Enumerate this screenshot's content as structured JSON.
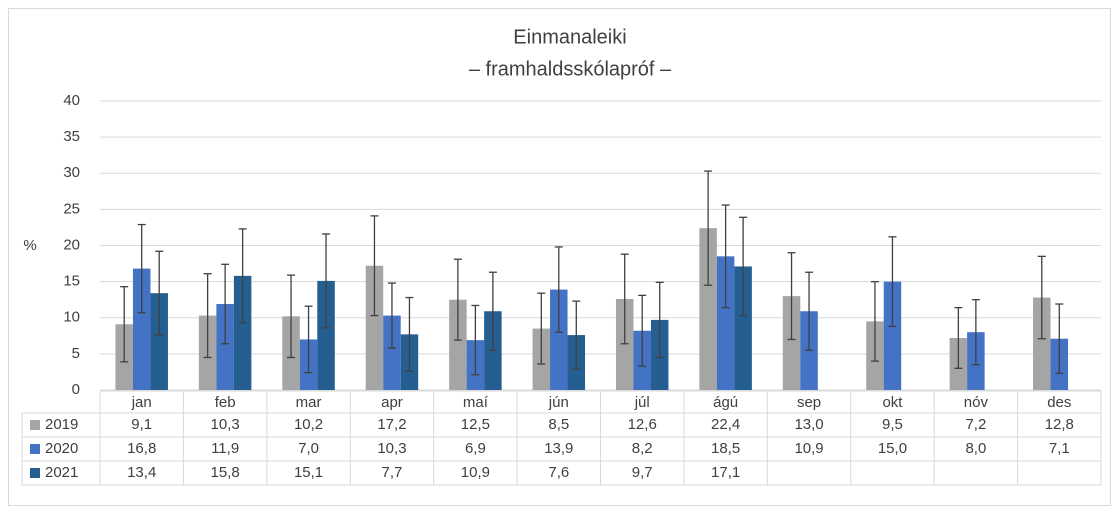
{
  "chart_data": {
    "type": "bar",
    "title": "Einmanaleiki",
    "subtitle": "– framhaldsskólapróf –",
    "y_label": "%",
    "categories": [
      "jan",
      "feb",
      "mar",
      "apr",
      "maí",
      "jún",
      "júl",
      "ágú",
      "sep",
      "okt",
      "nóv",
      "des"
    ],
    "series": [
      {
        "name": "2019",
        "color": "#a5a5a5",
        "values": [
          9.1,
          10.3,
          10.2,
          17.2,
          12.5,
          8.5,
          12.6,
          22.4,
          13.0,
          9.5,
          7.2,
          12.8
        ],
        "value_labels": [
          "9,1",
          "10,3",
          "10,2",
          "17,2",
          "12,5",
          "8,5",
          "12,6",
          "22,4",
          "13,0",
          "9,5",
          "7,2",
          "12,8"
        ],
        "errors": [
          5.2,
          5.8,
          5.7,
          6.9,
          5.6,
          4.9,
          6.2,
          7.9,
          6.0,
          5.5,
          4.2,
          5.7
        ]
      },
      {
        "name": "2020",
        "color": "#4472c4",
        "values": [
          16.8,
          11.9,
          7.0,
          10.3,
          6.9,
          13.9,
          8.2,
          18.5,
          10.9,
          15.0,
          8.0,
          7.1
        ],
        "value_labels": [
          "16,8",
          "11,9",
          "7,0",
          "10,3",
          "6,9",
          "13,9",
          "8,2",
          "18,5",
          "10,9",
          "15,0",
          "8,0",
          "7,1"
        ],
        "errors": [
          6.1,
          5.5,
          4.6,
          4.5,
          4.8,
          5.9,
          4.9,
          7.1,
          5.4,
          6.2,
          4.5,
          4.8
        ]
      },
      {
        "name": "2021",
        "color": "#255e91",
        "values": [
          13.4,
          15.8,
          15.1,
          7.7,
          10.9,
          7.6,
          9.7,
          17.1,
          null,
          null,
          null,
          null
        ],
        "value_labels": [
          "13,4",
          "15,8",
          "15,1",
          "7,7",
          "10,9",
          "7,6",
          "9,7",
          "17,1",
          null,
          null,
          null,
          null
        ],
        "errors": [
          5.8,
          6.5,
          6.5,
          5.1,
          5.4,
          4.7,
          5.2,
          6.8,
          null,
          null,
          null,
          null
        ]
      }
    ],
    "ylim": [
      0,
      40
    ],
    "yticks": [
      0,
      5,
      10,
      15,
      20,
      25,
      30,
      35,
      40
    ],
    "grid": true,
    "error_bar_color": "#404040"
  }
}
